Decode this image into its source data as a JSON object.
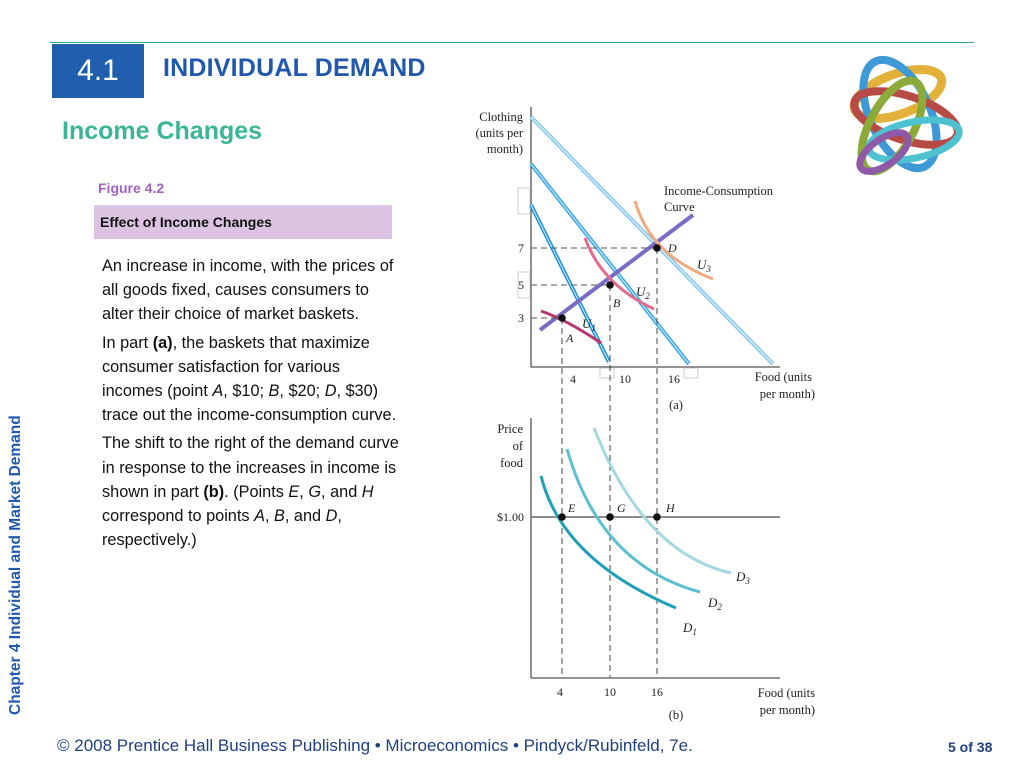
{
  "header": {
    "section_number": "4.1",
    "title": "INDIVIDUAL DEMAND",
    "subtitle": "Income Changes"
  },
  "sidebar": {
    "chapter_label": "Chapter 4  Individual and Market Demand"
  },
  "figure": {
    "label": "Figure 4.2",
    "caption": "Effect of Income Changes",
    "para1": "An increase in income, with the prices of all goods fixed, causes consumers to alter their choice of market baskets.",
    "para2": {
      "t1": "In part ",
      "b1": "(a)",
      "t2": ", the baskets that maximize consumer satisfaction for various incomes (point ",
      "i1": "A",
      "t3": ", $10; ",
      "i2": "B",
      "t4": ", $20; ",
      "i3": "D",
      "t5": ", $30) trace out the income-consumption curve."
    },
    "para3": {
      "t1": "The shift to the right of the demand curve in response to the increases in income is shown in part ",
      "b1": "(b)",
      "t2": ". (Points ",
      "i1": "E",
      "t3": ", ",
      "i2": "G",
      "t4": ", and ",
      "i3": "H",
      "t5": " correspond to points ",
      "i4": "A",
      "t6": ", ",
      "i5": "B",
      "t7": ", and ",
      "i6": "D",
      "t8": ", respectively.)"
    }
  },
  "graph_a": {
    "y_axis_label": [
      "Clothing",
      "(units per",
      "month)"
    ],
    "x_axis_label": [
      "Food (units",
      "per month)"
    ],
    "part_label": "(a)",
    "x_ticks": [
      "4",
      "10",
      "16"
    ],
    "y_ticks": [
      "7",
      "5",
      "3"
    ],
    "icc_label": [
      "Income-Consumption",
      "Curve"
    ],
    "points": {
      "a": "A",
      "b": "B",
      "d": "D"
    },
    "indifference": {
      "u1": "U",
      "u1_sub": "1",
      "u2": "U",
      "u2_sub": "2",
      "u3": "U",
      "u3_sub": "3"
    }
  },
  "graph_b": {
    "y_axis_label": [
      "Price",
      "of",
      "food"
    ],
    "x_axis_label": [
      "Food (units",
      "per month)"
    ],
    "part_label": "(b)",
    "price_label": "$1.00",
    "x_ticks": [
      "4",
      "10",
      "16"
    ],
    "points": {
      "e": "E",
      "g": "G",
      "h": "H"
    },
    "demand": {
      "d1": "D",
      "d1_sub": "1",
      "d2": "D",
      "d2_sub": "2",
      "d3": "D",
      "d3_sub": "3"
    }
  },
  "colors": {
    "title_blue": "#2058ae",
    "subtitle_green": "#3ab598",
    "figure_purple": "#a45fc4",
    "budget_line": "#4aa4e0",
    "icc_line": "#7c6bc4"
  },
  "footer": {
    "text": "© 2008 Prentice Hall Business Publishing  •  Microeconomics  •  Pindyck/Rubinfeld, 7e.",
    "page": "5 of 38"
  }
}
